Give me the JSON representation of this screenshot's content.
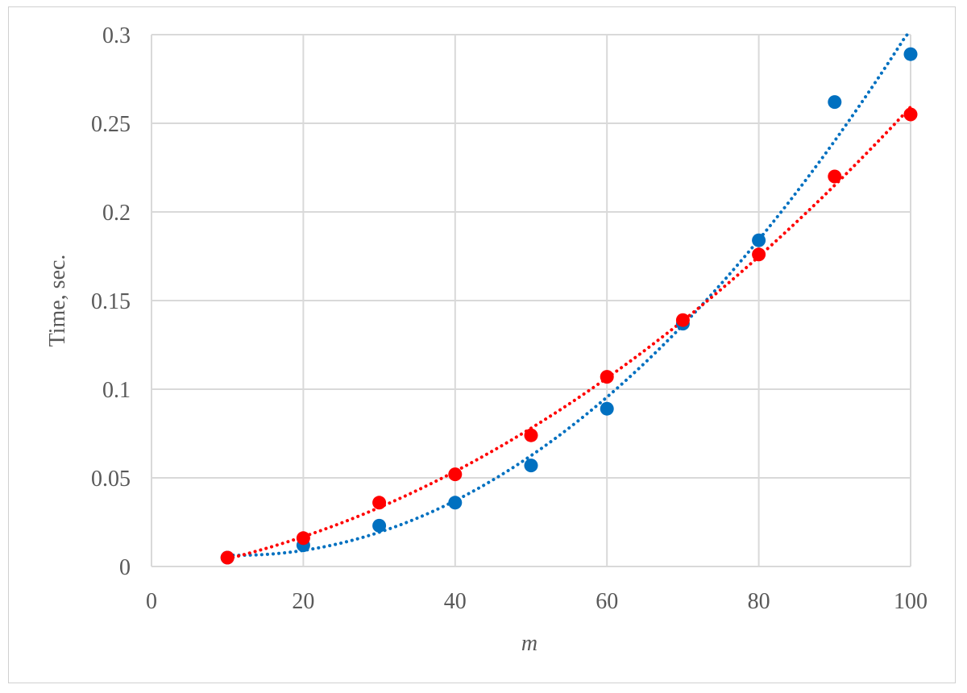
{
  "chart_data": {
    "type": "scatter",
    "title": "",
    "xlabel": "m",
    "ylabel": "Time, sec.",
    "xlim": [
      0,
      100
    ],
    "ylim": [
      0,
      0.3
    ],
    "xticks": [
      "0",
      "20",
      "40",
      "60",
      "80",
      "100"
    ],
    "yticks": [
      "0",
      "0.05",
      "0.1",
      "0.15",
      "0.2",
      "0.25",
      "0.3"
    ],
    "grid": true,
    "legend": "none",
    "series": [
      {
        "color": "#0070C0",
        "x": [
          10,
          20,
          30,
          40,
          50,
          60,
          70,
          80,
          90,
          100
        ],
        "y": [
          0.005,
          0.012,
          0.023,
          0.036,
          0.057,
          0.089,
          0.137,
          0.184,
          0.262,
          0.289
        ],
        "trendline": "polynomial",
        "trendline_style": "dotted"
      },
      {
        "color": "#FF0000",
        "x": [
          10,
          20,
          30,
          40,
          50,
          60,
          70,
          80,
          90,
          100
        ],
        "y": [
          0.005,
          0.016,
          0.036,
          0.052,
          0.074,
          0.107,
          0.139,
          0.176,
          0.22,
          0.255
        ],
        "trendline": "polynomial",
        "trendline_style": "dotted"
      }
    ]
  }
}
